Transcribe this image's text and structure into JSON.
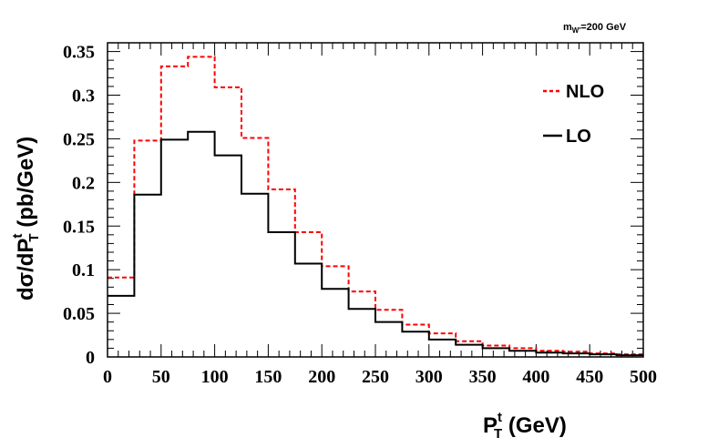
{
  "chart_data": {
    "type": "line",
    "style": "step-histogram",
    "bin_width": 25,
    "x_edges": [
      0,
      25,
      50,
      75,
      100,
      125,
      150,
      175,
      200,
      225,
      250,
      275,
      300,
      325,
      350,
      375,
      400,
      425,
      450,
      475,
      500
    ],
    "series": [
      {
        "name": "NLO",
        "color": "#ff0000",
        "dash": true,
        "values": [
          0.091,
          0.248,
          0.333,
          0.344,
          0.309,
          0.251,
          0.192,
          0.143,
          0.104,
          0.075,
          0.054,
          0.037,
          0.027,
          0.018,
          0.013,
          0.01,
          0.007,
          0.006,
          0.004,
          0.003
        ]
      },
      {
        "name": "LO",
        "color": "#000000",
        "dash": false,
        "values": [
          0.07,
          0.186,
          0.249,
          0.258,
          0.231,
          0.187,
          0.143,
          0.107,
          0.078,
          0.055,
          0.04,
          0.029,
          0.02,
          0.014,
          0.01,
          0.007,
          0.005,
          0.004,
          0.003,
          0.002
        ]
      }
    ],
    "xlim": [
      0,
      500
    ],
    "ylim": [
      0,
      0.36
    ],
    "x_ticks": [
      0,
      50,
      100,
      150,
      200,
      250,
      300,
      350,
      400,
      450,
      500
    ],
    "y_ticks": [
      0,
      0.05,
      0.1,
      0.15,
      0.2,
      0.25,
      0.3,
      0.35
    ],
    "x_tick_labels": [
      "0",
      "50",
      "100",
      "150",
      "200",
      "250",
      "300",
      "350",
      "400",
      "450",
      "500"
    ],
    "y_tick_labels": [
      "0",
      "0.05",
      "0.1",
      "0.15",
      "0.2",
      "0.25",
      "0.3",
      "0.35"
    ],
    "xlabel": {
      "main": "P",
      "sup": "t",
      "sub": "T",
      "tail": " (GeV)"
    },
    "ylabel": {
      "main": "dσ/dP",
      "sup": "t",
      "sub": "T",
      "tail": " (pb/GeV)"
    },
    "annotation": {
      "main": "m",
      "sub": "W'",
      "tail": "=200 GeV"
    },
    "legend": {
      "placement": "top-right",
      "entries": [
        "NLO",
        "LO"
      ]
    },
    "grid": false
  }
}
